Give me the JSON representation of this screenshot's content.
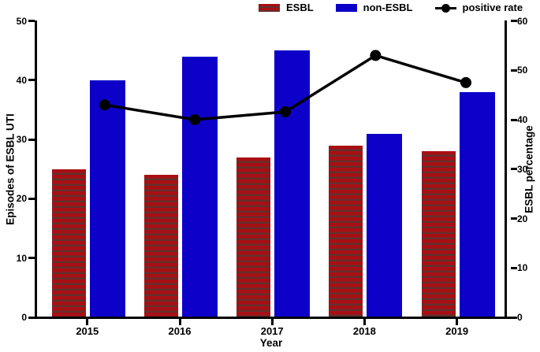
{
  "legend": [
    {
      "label": "ESBL",
      "swatch": "red-hatched-swatch"
    },
    {
      "label": "non-ESBL",
      "swatch": "blue-swatch"
    },
    {
      "label": "positive rate",
      "swatch": "black-dot-line-marker"
    }
  ],
  "chart_data": {
    "type": "bar+line",
    "title": "",
    "categories": [
      "2015",
      "2016",
      "2017",
      "2018",
      "2019"
    ],
    "series": [
      {
        "name": "ESBL",
        "type": "bar",
        "axis": "left",
        "style": "hatched",
        "values": [
          25,
          24,
          27,
          29,
          28
        ]
      },
      {
        "name": "non-ESBL",
        "type": "bar",
        "axis": "left",
        "style": "solid",
        "values": [
          40,
          44,
          45,
          31,
          38
        ]
      },
      {
        "name": "positive rate",
        "type": "line",
        "axis": "right",
        "style": "line-with-dots",
        "values": [
          43,
          40,
          41.6,
          53,
          47.5
        ]
      }
    ],
    "left_axis": {
      "label": "Episodes of ESBL UTI",
      "range": [
        0,
        50
      ],
      "ticks": [
        0,
        10,
        20,
        30,
        40,
        50
      ]
    },
    "right_axis": {
      "label": "ESBL percentage",
      "range": [
        0,
        60
      ],
      "ticks": [
        0,
        10,
        20,
        30,
        40,
        50,
        60
      ]
    },
    "x_axis": {
      "label": "Year"
    },
    "legend_position": "top",
    "grid": false,
    "colors": {
      "ESBL": "#a80f14",
      "non-ESBL": "#0d00c8",
      "positive_rate": "#000000"
    }
  }
}
